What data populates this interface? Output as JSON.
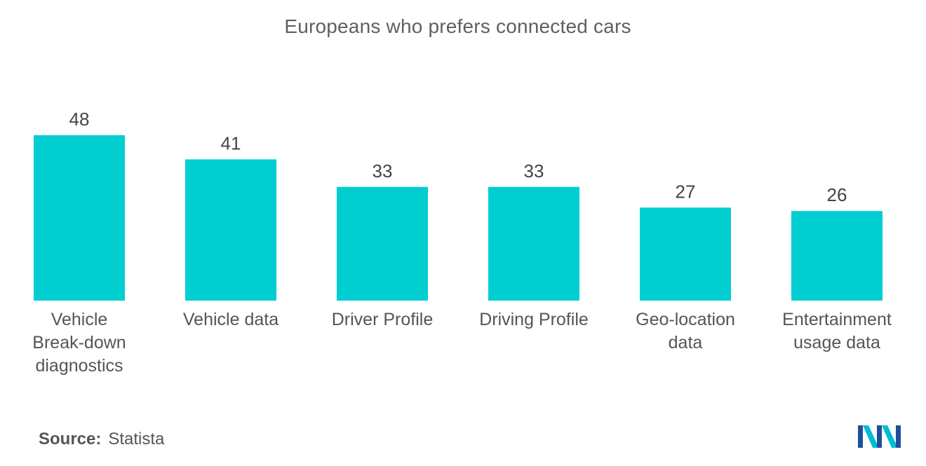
{
  "chart_data": {
    "type": "bar",
    "title": "Europeans who prefers connected cars",
    "categories": [
      "Vehicle Break-down diagnostics",
      "Vehicle data",
      "Driver Profile",
      "Driving Profile",
      "Geo-location data",
      "Entertainment usage data"
    ],
    "category_lines": [
      [
        "Vehicle",
        "Break-down",
        "diagnostics"
      ],
      [
        "Vehicle data"
      ],
      [
        "Driver Profile"
      ],
      [
        "Driving Profile"
      ],
      [
        "Geo-location",
        "data"
      ],
      [
        "Entertainment",
        "usage data"
      ]
    ],
    "values": [
      48,
      41,
      33,
      33,
      27,
      26
    ],
    "ylim": [
      0,
      48
    ],
    "xlabel": "",
    "ylabel": "",
    "grid": false,
    "legend": "none",
    "bar_color": "#00ced1"
  },
  "footer": {
    "source_label": "Source:",
    "source_value": "Statista"
  },
  "logo": {
    "icon": "mordor-intelligence-logo-icon",
    "colors": [
      "#1f4e9c",
      "#00bcd4"
    ]
  }
}
